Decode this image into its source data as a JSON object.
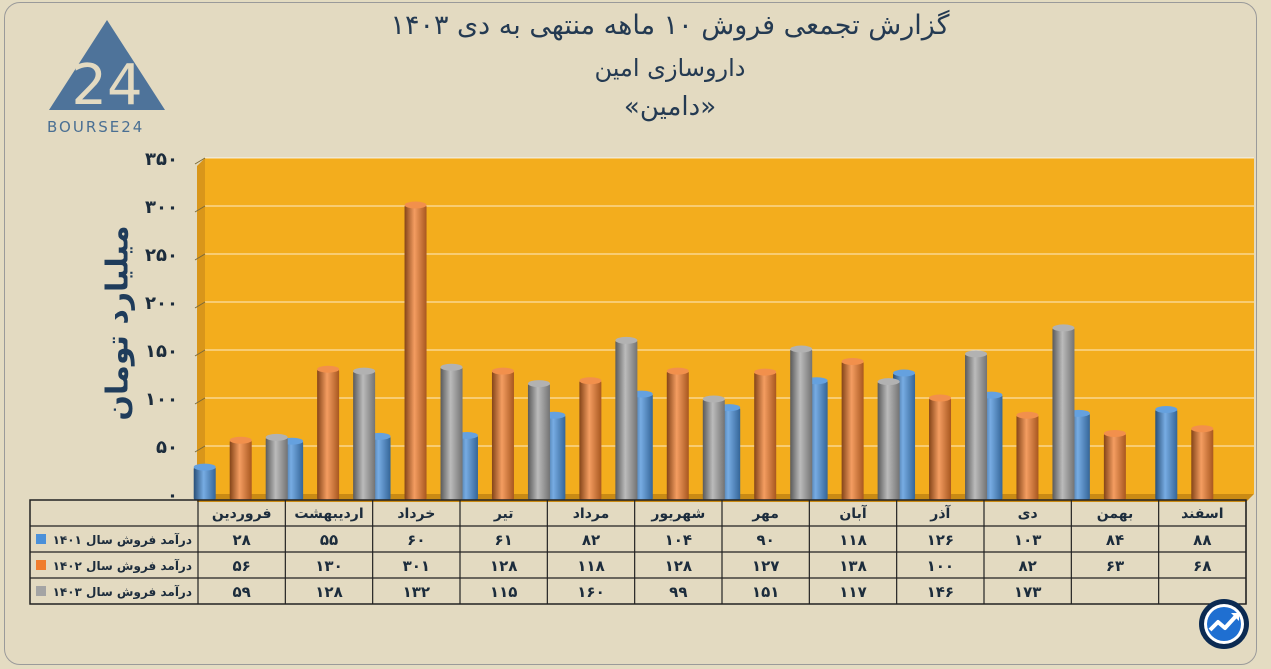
{
  "title": {
    "line1": "گزارش تجمعی فروش ۱۰ ماهه منتهی به دی ۱۴۰۳",
    "line2": "داروسازی امین",
    "line3": "«دامین»"
  },
  "logo": {
    "text": "BOURSE24",
    "mark": "24",
    "icon": "bourse24-triangle-logo"
  },
  "badge_icon": "trend-chart-badge-icon",
  "colors": {
    "background": "#e3dac1",
    "plot_bg": "#f3ad1d",
    "s1401": "#4a90d9",
    "s1402": "#f07c2c",
    "s1403": "#a4a4a4",
    "text": "#243a52"
  },
  "chart_data": {
    "type": "bar",
    "ylabel": "میلیارد تومان",
    "ylim": [
      0,
      350
    ],
    "yticks": [
      "۰",
      "۵۰",
      "۱۰۰",
      "۱۵۰",
      "۲۰۰",
      "۲۵۰",
      "۳۰۰",
      "۳۵۰"
    ],
    "grid": true,
    "categories": [
      "فروردین",
      "اردیبهشت",
      "خرداد",
      "تیر",
      "مرداد",
      "شهریور",
      "مهر",
      "آبان",
      "آذر",
      "دی",
      "بهمن",
      "اسفند"
    ],
    "series": [
      {
        "name": "درآمد فروش سال ۱۴۰۱",
        "values": [
          28,
          55,
          60,
          61,
          82,
          104,
          90,
          118,
          126,
          103,
          84,
          88
        ],
        "labels": [
          "۲۸",
          "۵۵",
          "۶۰",
          "۶۱",
          "۸۲",
          "۱۰۴",
          "۹۰",
          "۱۱۸",
          "۱۲۶",
          "۱۰۳",
          "۸۴",
          "۸۸"
        ]
      },
      {
        "name": "درآمد فروش سال ۱۴۰۲",
        "values": [
          56,
          130,
          301,
          128,
          118,
          128,
          127,
          138,
          100,
          82,
          63,
          68
        ],
        "labels": [
          "۵۶",
          "۱۳۰",
          "۳۰۱",
          "۱۲۸",
          "۱۱۸",
          "۱۲۸",
          "۱۲۷",
          "۱۳۸",
          "۱۰۰",
          "۸۲",
          "۶۳",
          "۶۸"
        ]
      },
      {
        "name": "درآمد فروش سال ۱۴۰۳",
        "values": [
          59,
          128,
          132,
          115,
          160,
          99,
          151,
          117,
          146,
          173,
          null,
          null
        ],
        "labels": [
          "۵۹",
          "۱۲۸",
          "۱۳۲",
          "۱۱۵",
          "۱۶۰",
          "۹۹",
          "۱۵۱",
          "۱۱۷",
          "۱۴۶",
          "۱۷۳",
          "",
          ""
        ]
      }
    ]
  }
}
